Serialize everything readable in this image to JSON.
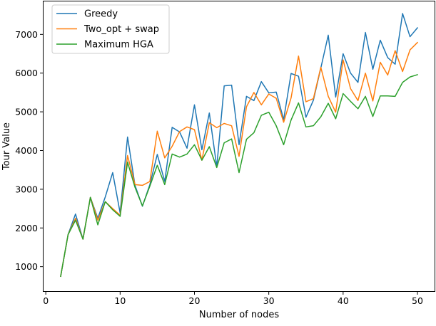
{
  "chart_data": {
    "type": "line",
    "xlabel": "Number of nodes",
    "ylabel": "Tour Value",
    "xlim": [
      -0.4,
      52.4
    ],
    "ylim": [
      350,
      7870
    ],
    "xticks": [
      0,
      10,
      20,
      30,
      40,
      50
    ],
    "yticks": [
      1000,
      2000,
      3000,
      4000,
      5000,
      6000,
      7000
    ],
    "grid": false,
    "legend_position": "top-left",
    "x": [
      2,
      3,
      4,
      5,
      6,
      7,
      8,
      9,
      10,
      11,
      12,
      13,
      14,
      15,
      16,
      17,
      18,
      19,
      20,
      21,
      22,
      23,
      24,
      25,
      26,
      27,
      28,
      29,
      30,
      31,
      32,
      33,
      34,
      35,
      36,
      37,
      38,
      39,
      40,
      41,
      42,
      43,
      44,
      45,
      46,
      47,
      48,
      49,
      50
    ],
    "series": [
      {
        "name": "Greedy",
        "color": "#1f77b4",
        "values": [
          750,
          1830,
          2360,
          1710,
          2790,
          2250,
          2800,
          3430,
          2390,
          4350,
          3100,
          2560,
          3120,
          3900,
          3200,
          4600,
          4480,
          4060,
          5180,
          4020,
          4970,
          3580,
          5670,
          5690,
          4150,
          5400,
          5290,
          5780,
          5490,
          5510,
          4800,
          5990,
          5920,
          4860,
          5300,
          6130,
          6980,
          5380,
          6500,
          6000,
          5760,
          7050,
          6100,
          6850,
          6400,
          6230,
          7540,
          6940,
          7170
        ]
      },
      {
        "name": "Two_opt + swap",
        "color": "#ff7f0e",
        "values": [
          750,
          1830,
          2250,
          1710,
          2790,
          2200,
          2680,
          2500,
          2330,
          3870,
          3120,
          3100,
          3200,
          4500,
          3810,
          4110,
          4490,
          4610,
          4540,
          3750,
          4720,
          4590,
          4700,
          4640,
          3850,
          5130,
          5500,
          5180,
          5460,
          5350,
          4730,
          5360,
          6440,
          5260,
          5340,
          6150,
          5400,
          4990,
          6340,
          5600,
          5290,
          6000,
          5280,
          6280,
          5950,
          6580,
          6040,
          6600,
          6790
        ]
      },
      {
        "name": "Maximum HGA",
        "color": "#2ca02c",
        "values": [
          750,
          1830,
          2200,
          1710,
          2790,
          2080,
          2680,
          2470,
          2300,
          3700,
          3050,
          2570,
          3080,
          3620,
          3120,
          3910,
          3830,
          3910,
          4150,
          3750,
          4100,
          3560,
          4200,
          4300,
          3430,
          4290,
          4460,
          4910,
          4990,
          4640,
          4150,
          4790,
          5230,
          4610,
          4640,
          4870,
          5220,
          4820,
          5470,
          5270,
          5080,
          5400,
          4880,
          5410,
          5410,
          5400,
          5760,
          5900,
          5960
        ]
      }
    ]
  }
}
